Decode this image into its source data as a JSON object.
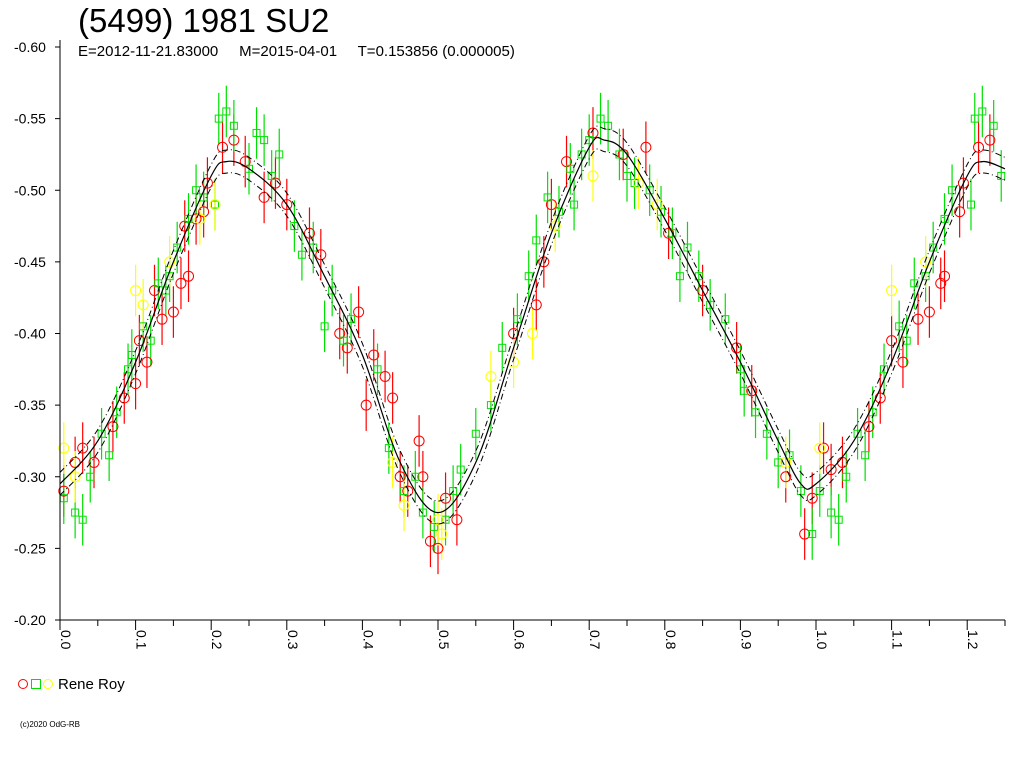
{
  "chart_data": {
    "type": "scatter",
    "title": "(5499) 1981 SU2",
    "subtitle": "E=2012-11-21.83000     M=2015-04-01     T=0.153856 (0.000005)",
    "xlabel": "",
    "ylabel": "",
    "x_range": [
      0,
      1.25
    ],
    "y_range": [
      -0.6,
      -0.2
    ],
    "y_reversed": true,
    "x_ticks": [
      "0.0",
      "0.1",
      "0.2",
      "0.3",
      "0.4",
      "0.5",
      "0.6",
      "0.7",
      "0.8",
      "0.9",
      "1.0",
      "1.1",
      "1.2"
    ],
    "y_ticks": [
      "-0.60",
      "-0.55",
      "-0.50",
      "-0.45",
      "-0.40",
      "-0.35",
      "-0.30",
      "-0.25",
      "-0.20"
    ],
    "grid": false,
    "legend": {
      "position": "bottom-left",
      "label": "Rene Roy"
    },
    "fit_curve": {
      "description": "fourier fit",
      "points": [
        [
          0.0,
          -0.295
        ],
        [
          0.05,
          -0.325
        ],
        [
          0.1,
          -0.38
        ],
        [
          0.15,
          -0.45
        ],
        [
          0.2,
          -0.51
        ],
        [
          0.22,
          -0.52
        ],
        [
          0.25,
          -0.515
        ],
        [
          0.3,
          -0.49
        ],
        [
          0.35,
          -0.44
        ],
        [
          0.4,
          -0.385
        ],
        [
          0.45,
          -0.31
        ],
        [
          0.5,
          -0.275
        ],
        [
          0.55,
          -0.31
        ],
        [
          0.6,
          -0.39
        ],
        [
          0.65,
          -0.47
        ],
        [
          0.7,
          -0.53
        ],
        [
          0.72,
          -0.535
        ],
        [
          0.75,
          -0.525
        ],
        [
          0.8,
          -0.48
        ],
        [
          0.85,
          -0.43
        ],
        [
          0.9,
          -0.38
        ],
        [
          0.95,
          -0.325
        ],
        [
          0.98,
          -0.295
        ],
        [
          1.0,
          -0.295
        ],
        [
          1.05,
          -0.325
        ],
        [
          1.1,
          -0.38
        ],
        [
          1.15,
          -0.45
        ],
        [
          1.2,
          -0.51
        ],
        [
          1.22,
          -0.52
        ],
        [
          1.25,
          -0.515
        ]
      ]
    },
    "series": [
      {
        "color": "#ff0000",
        "marker": "circle",
        "points": [
          [
            0.005,
            -0.29
          ],
          [
            0.02,
            -0.31
          ],
          [
            0.03,
            -0.32
          ],
          [
            0.045,
            -0.31
          ],
          [
            0.07,
            -0.335
          ],
          [
            0.085,
            -0.355
          ],
          [
            0.1,
            -0.365
          ],
          [
            0.105,
            -0.395
          ],
          [
            0.115,
            -0.38
          ],
          [
            0.125,
            -0.43
          ],
          [
            0.135,
            -0.41
          ],
          [
            0.15,
            -0.415
          ],
          [
            0.16,
            -0.435
          ],
          [
            0.165,
            -0.475
          ],
          [
            0.17,
            -0.44
          ],
          [
            0.18,
            -0.48
          ],
          [
            0.19,
            -0.485
          ],
          [
            0.195,
            -0.505
          ],
          [
            0.215,
            -0.53
          ],
          [
            0.23,
            -0.535
          ],
          [
            0.245,
            -0.52
          ],
          [
            0.27,
            -0.495
          ],
          [
            0.285,
            -0.505
          ],
          [
            0.3,
            -0.49
          ],
          [
            0.33,
            -0.47
          ],
          [
            0.345,
            -0.455
          ],
          [
            0.37,
            -0.4
          ],
          [
            0.38,
            -0.39
          ],
          [
            0.395,
            -0.415
          ],
          [
            0.405,
            -0.35
          ],
          [
            0.415,
            -0.385
          ],
          [
            0.43,
            -0.37
          ],
          [
            0.44,
            -0.355
          ],
          [
            0.45,
            -0.3
          ],
          [
            0.46,
            -0.29
          ],
          [
            0.475,
            -0.325
          ],
          [
            0.48,
            -0.3
          ],
          [
            0.49,
            -0.255
          ],
          [
            0.5,
            -0.25
          ],
          [
            0.51,
            -0.285
          ],
          [
            0.525,
            -0.27
          ],
          [
            0.6,
            -0.4
          ],
          [
            0.63,
            -0.42
          ],
          [
            0.64,
            -0.45
          ],
          [
            0.65,
            -0.49
          ],
          [
            0.67,
            -0.52
          ],
          [
            0.705,
            -0.54
          ],
          [
            0.745,
            -0.525
          ],
          [
            0.775,
            -0.53
          ],
          [
            0.805,
            -0.47
          ],
          [
            0.85,
            -0.43
          ],
          [
            0.895,
            -0.39
          ],
          [
            0.915,
            -0.36
          ],
          [
            0.96,
            -0.3
          ],
          [
            0.985,
            -0.26
          ],
          [
            0.995,
            -0.285
          ],
          [
            1.01,
            -0.32
          ],
          [
            1.02,
            -0.305
          ],
          [
            1.035,
            -0.31
          ],
          [
            1.07,
            -0.335
          ],
          [
            1.085,
            -0.355
          ],
          [
            1.1,
            -0.395
          ],
          [
            1.115,
            -0.38
          ],
          [
            1.135,
            -0.41
          ],
          [
            1.15,
            -0.415
          ],
          [
            1.165,
            -0.435
          ],
          [
            1.17,
            -0.44
          ],
          [
            1.19,
            -0.485
          ],
          [
            1.195,
            -0.505
          ],
          [
            1.215,
            -0.53
          ],
          [
            1.23,
            -0.535
          ]
        ]
      },
      {
        "color": "#00e000",
        "marker": "square",
        "points": [
          [
            0.005,
            -0.285
          ],
          [
            0.02,
            -0.275
          ],
          [
            0.03,
            -0.27
          ],
          [
            0.04,
            -0.3
          ],
          [
            0.055,
            -0.33
          ],
          [
            0.065,
            -0.315
          ],
          [
            0.075,
            -0.345
          ],
          [
            0.09,
            -0.375
          ],
          [
            0.095,
            -0.385
          ],
          [
            0.11,
            -0.405
          ],
          [
            0.12,
            -0.395
          ],
          [
            0.13,
            -0.435
          ],
          [
            0.14,
            -0.43
          ],
          [
            0.145,
            -0.44
          ],
          [
            0.155,
            -0.46
          ],
          [
            0.17,
            -0.48
          ],
          [
            0.18,
            -0.5
          ],
          [
            0.19,
            -0.495
          ],
          [
            0.205,
            -0.49
          ],
          [
            0.21,
            -0.55
          ],
          [
            0.22,
            -0.555
          ],
          [
            0.23,
            -0.545
          ],
          [
            0.25,
            -0.515
          ],
          [
            0.26,
            -0.54
          ],
          [
            0.27,
            -0.535
          ],
          [
            0.28,
            -0.51
          ],
          [
            0.29,
            -0.525
          ],
          [
            0.31,
            -0.475
          ],
          [
            0.32,
            -0.455
          ],
          [
            0.335,
            -0.46
          ],
          [
            0.35,
            -0.405
          ],
          [
            0.36,
            -0.43
          ],
          [
            0.375,
            -0.395
          ],
          [
            0.385,
            -0.41
          ],
          [
            0.42,
            -0.375
          ],
          [
            0.435,
            -0.32
          ],
          [
            0.455,
            -0.29
          ],
          [
            0.47,
            -0.3
          ],
          [
            0.48,
            -0.275
          ],
          [
            0.495,
            -0.265
          ],
          [
            0.51,
            -0.27
          ],
          [
            0.52,
            -0.29
          ],
          [
            0.53,
            -0.305
          ],
          [
            0.55,
            -0.33
          ],
          [
            0.57,
            -0.35
          ],
          [
            0.585,
            -0.39
          ],
          [
            0.605,
            -0.41
          ],
          [
            0.62,
            -0.44
          ],
          [
            0.63,
            -0.465
          ],
          [
            0.645,
            -0.495
          ],
          [
            0.66,
            -0.485
          ],
          [
            0.675,
            -0.515
          ],
          [
            0.68,
            -0.49
          ],
          [
            0.69,
            -0.525
          ],
          [
            0.7,
            -0.535
          ],
          [
            0.715,
            -0.55
          ],
          [
            0.725,
            -0.545
          ],
          [
            0.74,
            -0.525
          ],
          [
            0.75,
            -0.51
          ],
          [
            0.76,
            -0.505
          ],
          [
            0.78,
            -0.5
          ],
          [
            0.795,
            -0.485
          ],
          [
            0.81,
            -0.47
          ],
          [
            0.82,
            -0.44
          ],
          [
            0.83,
            -0.46
          ],
          [
            0.845,
            -0.44
          ],
          [
            0.86,
            -0.42
          ],
          [
            0.88,
            -0.41
          ],
          [
            0.9,
            -0.375
          ],
          [
            0.905,
            -0.36
          ],
          [
            0.92,
            -0.345
          ],
          [
            0.935,
            -0.33
          ],
          [
            0.95,
            -0.31
          ],
          [
            0.965,
            -0.315
          ],
          [
            0.98,
            -0.29
          ],
          [
            0.995,
            -0.26
          ],
          [
            1.005,
            -0.29
          ],
          [
            1.02,
            -0.275
          ],
          [
            1.03,
            -0.27
          ],
          [
            1.04,
            -0.3
          ],
          [
            1.055,
            -0.33
          ],
          [
            1.065,
            -0.315
          ],
          [
            1.075,
            -0.345
          ],
          [
            1.09,
            -0.375
          ],
          [
            1.11,
            -0.405
          ],
          [
            1.12,
            -0.395
          ],
          [
            1.13,
            -0.435
          ],
          [
            1.145,
            -0.44
          ],
          [
            1.155,
            -0.46
          ],
          [
            1.17,
            -0.48
          ],
          [
            1.18,
            -0.5
          ],
          [
            1.205,
            -0.49
          ],
          [
            1.21,
            -0.55
          ],
          [
            1.22,
            -0.555
          ],
          [
            1.235,
            -0.545
          ],
          [
            1.245,
            -0.51
          ]
        ]
      },
      {
        "color": "#ffff00",
        "marker": "circle",
        "points": [
          [
            0.005,
            -0.32
          ],
          [
            0.02,
            -0.3
          ],
          [
            0.1,
            -0.43
          ],
          [
            0.11,
            -0.42
          ],
          [
            0.145,
            -0.45
          ],
          [
            0.185,
            -0.48
          ],
          [
            0.205,
            -0.49
          ],
          [
            0.44,
            -0.31
          ],
          [
            0.455,
            -0.28
          ],
          [
            0.5,
            -0.27
          ],
          [
            0.505,
            -0.26
          ],
          [
            0.57,
            -0.37
          ],
          [
            0.6,
            -0.38
          ],
          [
            0.625,
            -0.4
          ],
          [
            0.655,
            -0.475
          ],
          [
            0.705,
            -0.51
          ],
          [
            0.765,
            -0.505
          ],
          [
            0.79,
            -0.49
          ],
          [
            0.96,
            -0.31
          ],
          [
            1.005,
            -0.32
          ],
          [
            1.1,
            -0.43
          ],
          [
            1.145,
            -0.45
          ]
        ]
      }
    ]
  },
  "footer": {
    "copyright": "(c)2020 OdG-RB"
  }
}
